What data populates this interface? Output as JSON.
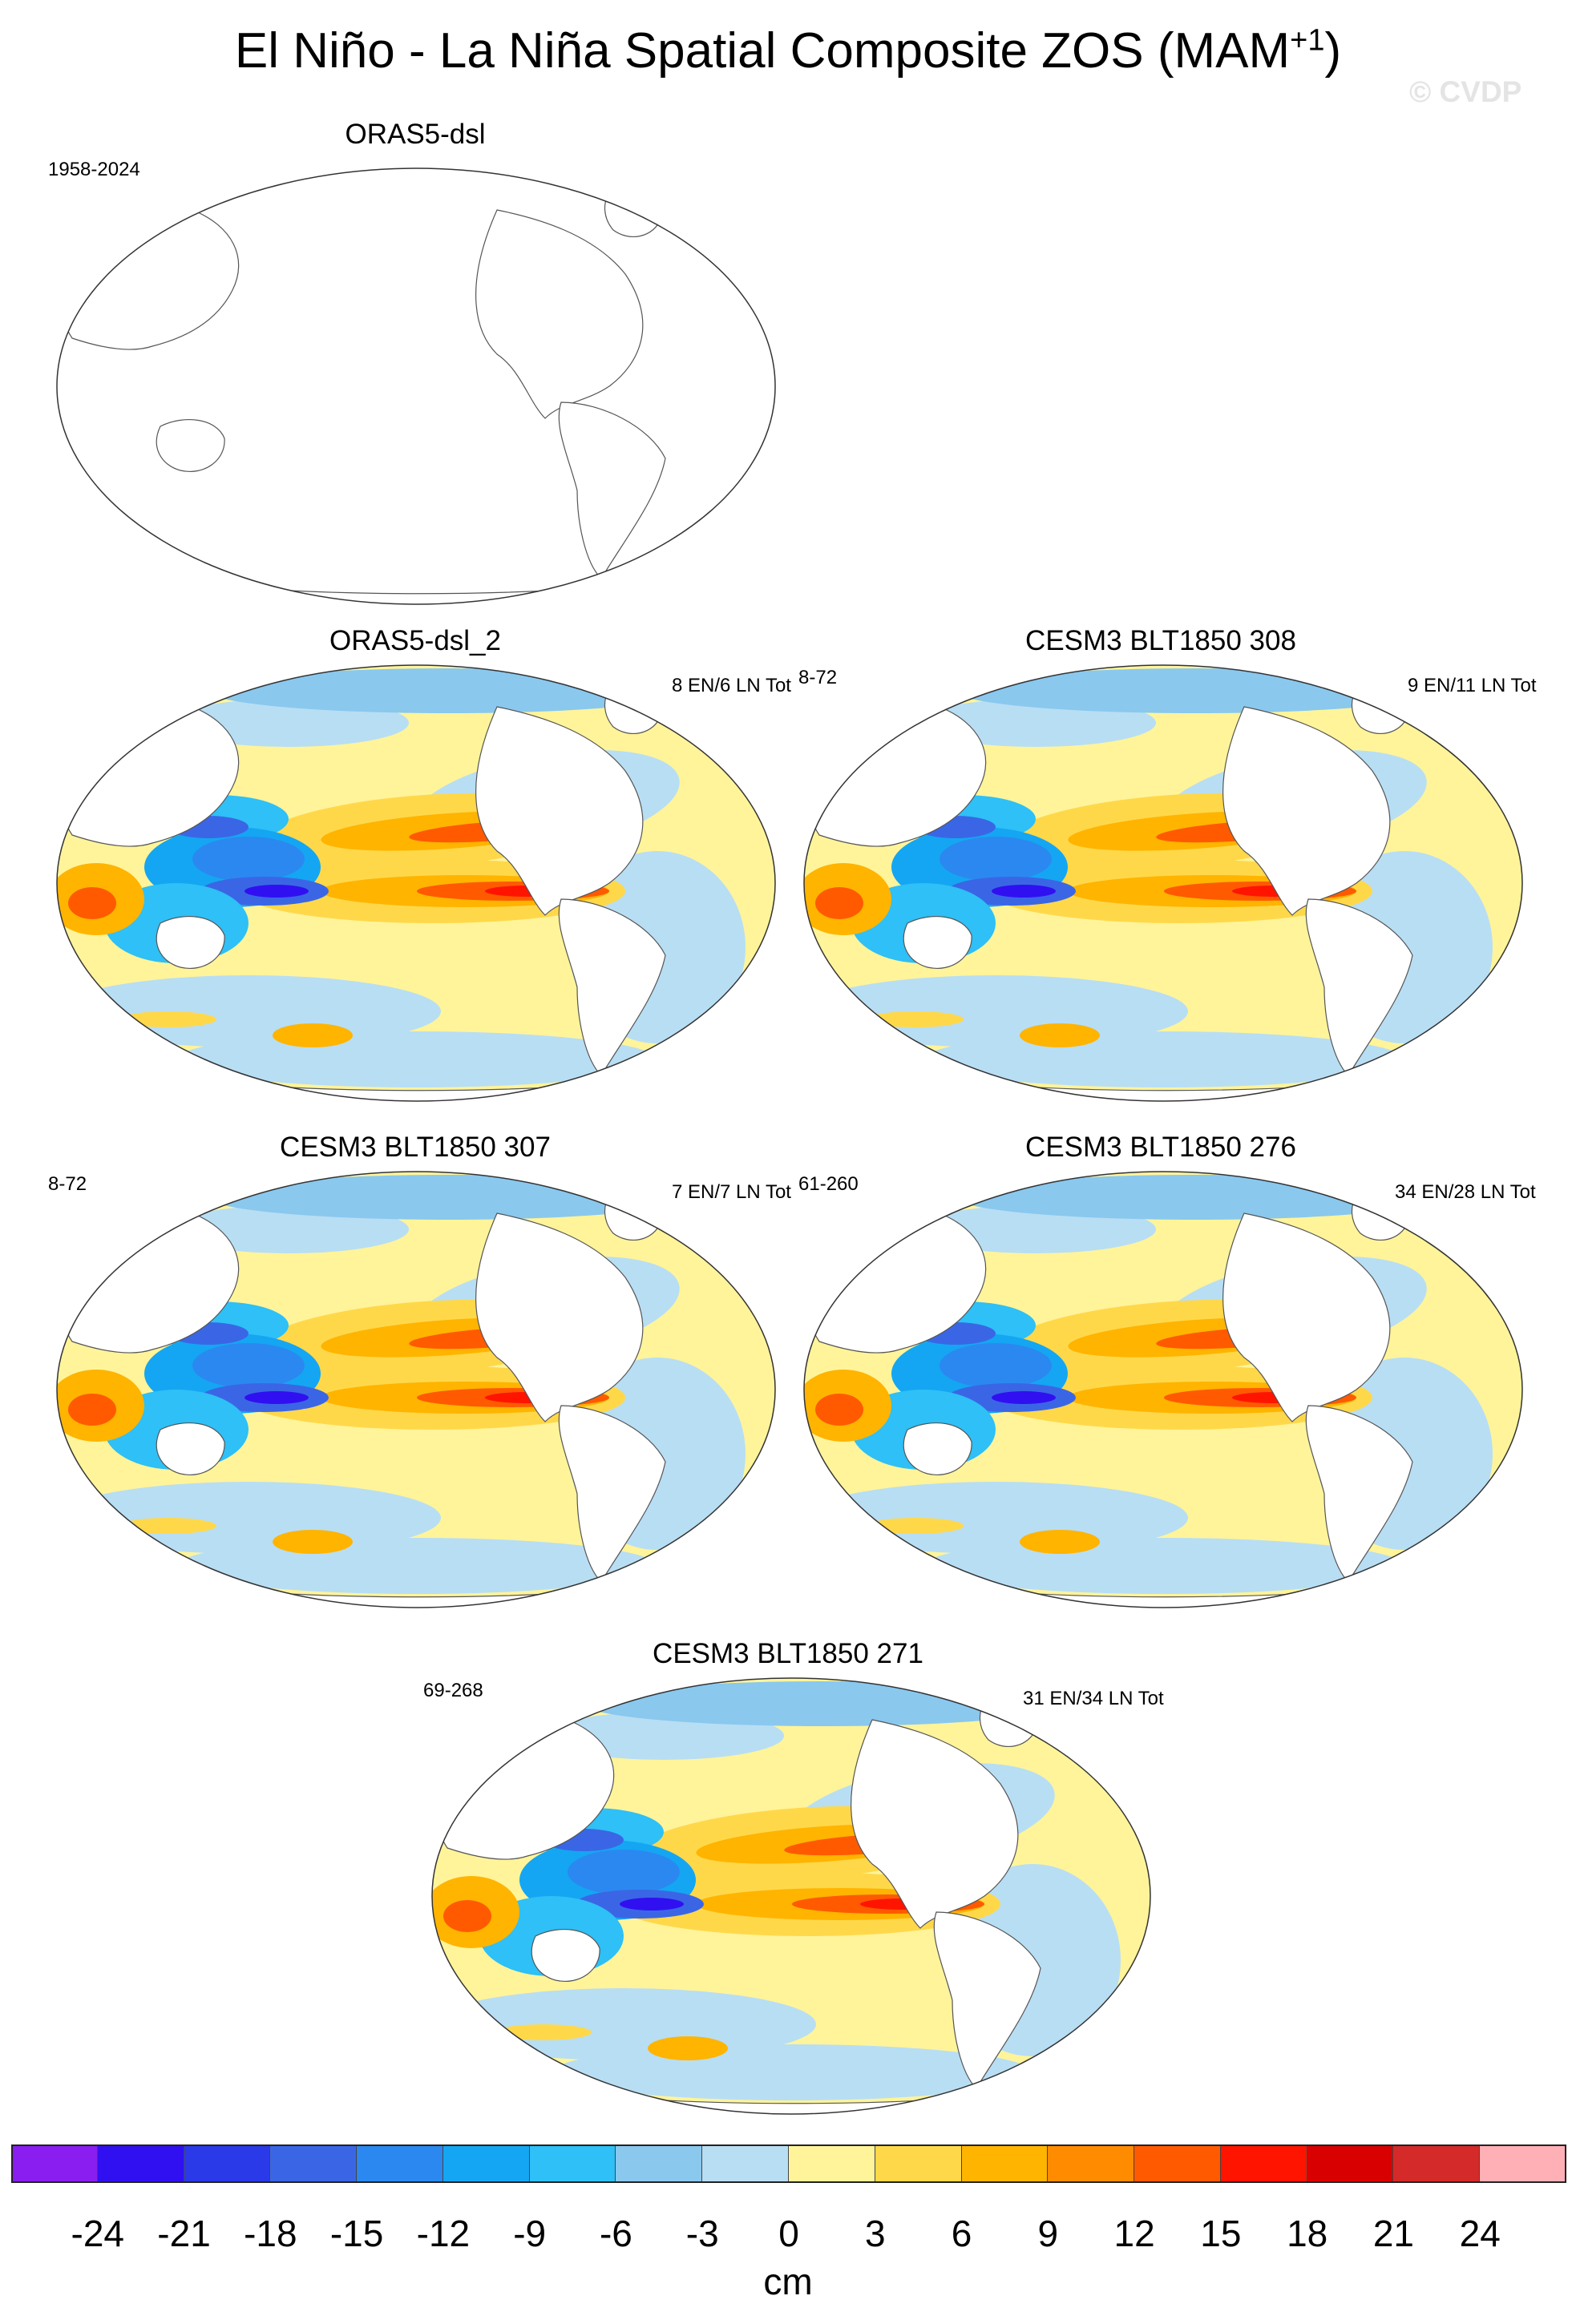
{
  "figure": {
    "title": "El Niño - La Niña Spatial Composite ZOS (MAM",
    "title_sup": "+1",
    "title_close": ")",
    "watermark": "© CVDP"
  },
  "panels": [
    {
      "id": "p0",
      "title": "ORAS5-dsl",
      "left_label": "1958-2024",
      "right_label": "",
      "filled": false
    },
    {
      "id": "p1",
      "title": "ORAS5-dsl_2",
      "left_label": "",
      "right_label": "8 EN/6 LN Tot",
      "filled": true
    },
    {
      "id": "p2",
      "title": "CESM3 BLT1850 308",
      "left_label": "8-72",
      "right_label": "9 EN/11 LN Tot",
      "filled": true
    },
    {
      "id": "p3",
      "title": "CESM3 BLT1850 307",
      "left_label": "8-72",
      "right_label": "7 EN/7 LN Tot",
      "filled": true
    },
    {
      "id": "p4",
      "title": "CESM3 BLT1850 276",
      "left_label": "61-260",
      "right_label": "34 EN/28 LN Tot",
      "filled": true
    },
    {
      "id": "p5",
      "title": "CESM3 BLT1850 271",
      "left_label": "69-268",
      "right_label": "31 EN/34 LN Tot",
      "filled": true
    }
  ],
  "colorbar": {
    "units": "cm",
    "ticks": [
      "-24",
      "-21",
      "-18",
      "-15",
      "-12",
      "-9",
      "-6",
      "-3",
      "0",
      "3",
      "6",
      "9",
      "12",
      "15",
      "18",
      "21",
      "24"
    ],
    "colors": [
      "#8a1ef0",
      "#3010f0",
      "#2a3ae8",
      "#3a66e6",
      "#2b88f0",
      "#14a6f2",
      "#2ec0f6",
      "#8ac8ee",
      "#b8def4",
      "#fff49a",
      "#ffd84a",
      "#ffb400",
      "#ff8c00",
      "#ff5a00",
      "#ff1400",
      "#d80000",
      "#d42a2a",
      "#ffb0b6"
    ]
  },
  "chart_data": {
    "type": "heatmap",
    "title": "El Niño - La Niña Spatial Composite ZOS (MAM+1)",
    "variable": "ZOS",
    "units": "cm",
    "levels": [
      -24,
      -21,
      -18,
      -15,
      -12,
      -9,
      -6,
      -3,
      0,
      3,
      6,
      9,
      12,
      15,
      18,
      21,
      24
    ],
    "panels": [
      {
        "name": "ORAS5-dsl",
        "period": "1958-2024",
        "events": ""
      },
      {
        "name": "ORAS5-dsl_2",
        "period": "",
        "events": "8 EN/6 LN Tot"
      },
      {
        "name": "CESM3 BLT1850 308",
        "period": "8-72",
        "events": "9 EN/11 LN Tot"
      },
      {
        "name": "CESM3 BLT1850 307",
        "period": "8-72",
        "events": "7 EN/7 LN Tot"
      },
      {
        "name": "CESM3 BLT1850 276",
        "period": "61-260",
        "events": "34 EN/28 LN Tot"
      },
      {
        "name": "CESM3 BLT1850 271",
        "period": "69-268",
        "events": "31 EN/34 LN Tot"
      }
    ]
  }
}
